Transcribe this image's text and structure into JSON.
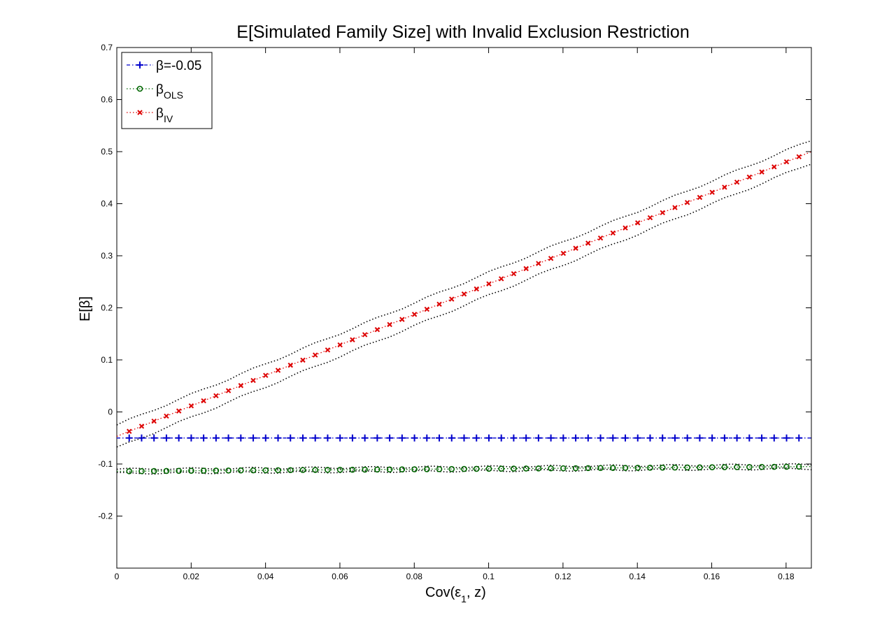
{
  "chart_data": {
    "type": "line",
    "title": "E[Simulated Family Size] with Invalid Exclusion Restriction",
    "xlabel": "Cov(ε1, z)",
    "ylabel": "E[β]",
    "xlim": [
      0,
      0.1868
    ],
    "ylim": [
      -0.3,
      0.7
    ],
    "x_ticks": [
      0,
      0.02,
      0.04,
      0.06,
      0.08,
      0.1,
      0.12,
      0.14,
      0.16,
      0.18
    ],
    "x_tick_labels": [
      "0",
      "0.02",
      "0.04",
      "0.06",
      "0.08",
      "0.1",
      "0.12",
      "0.14",
      "0.16",
      "0.18"
    ],
    "y_ticks": [
      -0.2,
      -0.1,
      0,
      0.1,
      0.2,
      0.3,
      0.4,
      0.5,
      0.6,
      0.7
    ],
    "y_tick_labels": [
      "-0.2",
      "-0.1",
      "0",
      "0.1",
      "0.2",
      "0.3",
      "0.4",
      "0.5",
      "0.6",
      "0.7"
    ],
    "grid": false,
    "legend_position": "top-left",
    "x_series": {
      "start": 0.0,
      "end": 0.1868,
      "points": 57
    },
    "series": [
      {
        "name": "β=-0.05",
        "legend_main": "β=-0.05",
        "legend_sub": "",
        "color": "#0000cc",
        "marker": "plus",
        "line": "dash-dot",
        "y_start": -0.05,
        "y_end": -0.05,
        "band": 0
      },
      {
        "name": "βOLS",
        "legend_main": "β",
        "legend_sub": "OLS",
        "color": "#006600",
        "marker": "circle",
        "line": "dotted",
        "y_start": -0.114,
        "y_end": -0.105,
        "band": 0.004
      },
      {
        "name": "βIV",
        "legend_main": "β",
        "legend_sub": "IV",
        "color": "#dd0000",
        "marker": "x",
        "line": "dotted",
        "y_start": -0.047,
        "y_end": 0.5,
        "band": 0.022
      }
    ],
    "band_color": "#000000"
  }
}
